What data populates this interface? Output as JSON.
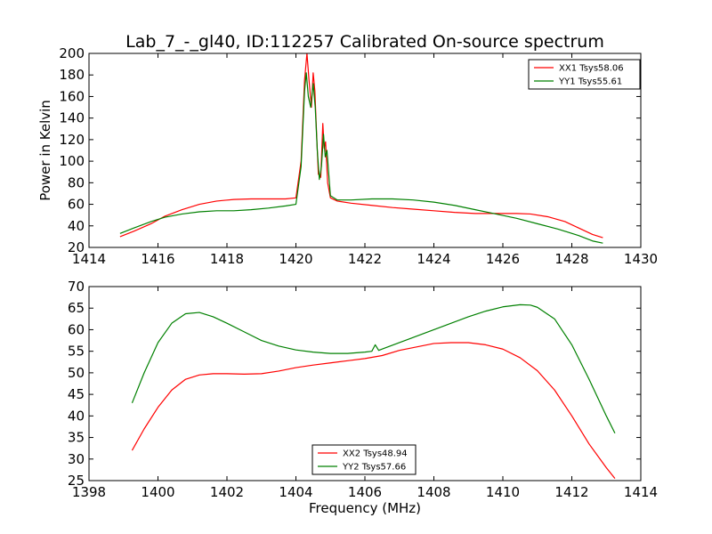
{
  "chart_data": [
    {
      "type": "line",
      "title": "Lab_7_-_gl40, ID:112257 Calibrated On-source spectrum",
      "xlabel": "",
      "ylabel": "Power in Kelvin",
      "xlim": [
        1414,
        1430
      ],
      "ylim": [
        20,
        200
      ],
      "xticks": [
        1414,
        1416,
        1418,
        1420,
        1422,
        1424,
        1426,
        1428,
        1430
      ],
      "yticks": [
        20,
        40,
        60,
        80,
        100,
        120,
        140,
        160,
        180,
        200
      ],
      "grid": false,
      "legend_position": "top-right",
      "series": [
        {
          "name": "XX1 Tsys58.06",
          "color": "#ff0000",
          "x": [
            1414.9,
            1415.3,
            1415.8,
            1416.2,
            1416.7,
            1417.2,
            1417.7,
            1418.2,
            1418.7,
            1419.2,
            1419.7,
            1420.0,
            1420.15,
            1420.25,
            1420.32,
            1420.38,
            1420.45,
            1420.5,
            1420.55,
            1420.6,
            1420.65,
            1420.72,
            1420.78,
            1420.82,
            1420.86,
            1420.92,
            1421.0,
            1421.2,
            1421.6,
            1422.2,
            1422.8,
            1423.4,
            1424.0,
            1424.6,
            1425.2,
            1425.8,
            1426.4,
            1426.8,
            1427.3,
            1427.8,
            1428.2,
            1428.6,
            1428.9
          ],
          "y": [
            30,
            35,
            42,
            49,
            55,
            60,
            63,
            64.5,
            65,
            65,
            65,
            66,
            100,
            175,
            200,
            175,
            150,
            182,
            165,
            125,
            88,
            85,
            135,
            112,
            118,
            80,
            66,
            63,
            61,
            59,
            57,
            55.5,
            54,
            52.5,
            51.5,
            51.5,
            51.5,
            51,
            48.5,
            44,
            38,
            32,
            29
          ]
        },
        {
          "name": "YY1 Tsys55.61",
          "color": "#008000",
          "x": [
            1414.9,
            1415.3,
            1415.8,
            1416.2,
            1416.7,
            1417.2,
            1417.7,
            1418.2,
            1418.7,
            1419.2,
            1419.7,
            1420.0,
            1420.15,
            1420.25,
            1420.3,
            1420.36,
            1420.43,
            1420.5,
            1420.56,
            1420.62,
            1420.68,
            1420.74,
            1420.8,
            1420.85,
            1420.9,
            1421.0,
            1421.2,
            1421.6,
            1422.2,
            1422.8,
            1423.4,
            1424.0,
            1424.6,
            1425.2,
            1425.8,
            1426.4,
            1427.0,
            1427.6,
            1428.2,
            1428.6,
            1428.9
          ],
          "y": [
            33,
            38,
            44,
            48,
            51,
            53,
            54,
            54,
            55,
            56.5,
            58.5,
            60,
            95,
            165,
            182,
            160,
            150,
            172,
            150,
            110,
            83,
            95,
            125,
            104,
            110,
            68,
            64,
            64,
            65,
            65,
            64,
            62,
            59,
            55,
            51,
            47,
            42,
            37,
            31,
            26,
            24
          ]
        }
      ]
    },
    {
      "type": "line",
      "title": "",
      "xlabel": "Frequency (MHz)",
      "ylabel": "",
      "xlim": [
        1398,
        1414
      ],
      "ylim": [
        25,
        70
      ],
      "xticks": [
        1398,
        1400,
        1402,
        1404,
        1406,
        1408,
        1410,
        1412,
        1414
      ],
      "yticks": [
        25,
        30,
        35,
        40,
        45,
        50,
        55,
        60,
        65,
        70
      ],
      "grid": false,
      "legend_position": "bottom-center",
      "series": [
        {
          "name": "XX2 Tsys48.94",
          "color": "#ff0000",
          "x": [
            1399.25,
            1399.6,
            1400.0,
            1400.4,
            1400.8,
            1401.2,
            1401.6,
            1402.0,
            1402.5,
            1403.0,
            1403.5,
            1404.0,
            1404.5,
            1405.0,
            1405.5,
            1406.0,
            1406.5,
            1407.0,
            1407.5,
            1408.0,
            1408.5,
            1409.0,
            1409.5,
            1410.0,
            1410.5,
            1411.0,
            1411.5,
            1412.0,
            1412.5,
            1413.0,
            1413.25
          ],
          "y": [
            32,
            37,
            42,
            46,
            48.5,
            49.5,
            49.8,
            49.8,
            49.7,
            49.8,
            50.4,
            51.2,
            51.8,
            52.3,
            52.8,
            53.3,
            54.0,
            55.2,
            56.0,
            56.8,
            57.0,
            57.0,
            56.5,
            55.5,
            53.5,
            50.5,
            46.0,
            40.0,
            33.5,
            28.0,
            25.5
          ]
        },
        {
          "name": "YY2 Tsys57.66",
          "color": "#008000",
          "x": [
            1399.25,
            1399.6,
            1400.0,
            1400.4,
            1400.8,
            1401.2,
            1401.6,
            1402.0,
            1402.5,
            1403.0,
            1403.5,
            1404.0,
            1404.5,
            1405.0,
            1405.5,
            1406.0,
            1406.2,
            1406.3,
            1406.4,
            1406.5,
            1407.0,
            1407.5,
            1408.0,
            1408.5,
            1409.0,
            1409.5,
            1410.0,
            1410.5,
            1410.8,
            1411.0,
            1411.5,
            1412.0,
            1412.5,
            1413.0,
            1413.25
          ],
          "y": [
            43,
            50,
            57,
            61.5,
            63.7,
            64.0,
            63.0,
            61.5,
            59.5,
            57.5,
            56.2,
            55.3,
            54.8,
            54.5,
            54.5,
            54.8,
            55.0,
            56.5,
            55.2,
            55.5,
            57.0,
            58.5,
            60.0,
            61.5,
            63.0,
            64.3,
            65.3,
            65.8,
            65.7,
            65.2,
            62.5,
            56.5,
            48.5,
            40.0,
            36.0
          ]
        }
      ]
    }
  ]
}
